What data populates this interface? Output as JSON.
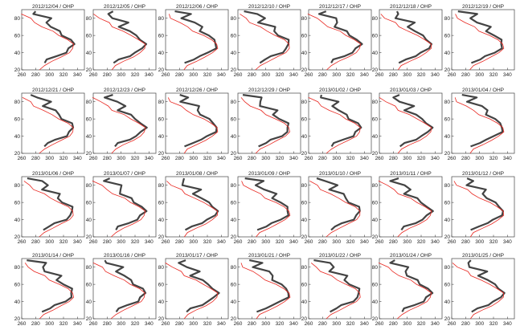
{
  "chart_data": {
    "type": "line",
    "xlim": [
      260,
      350
    ],
    "ylim": [
      20,
      90
    ],
    "x_ticks": [
      "260",
      "280",
      "300",
      "320",
      "340"
    ],
    "y_ticks": [
      "20",
      "40",
      "60",
      "80"
    ],
    "grid": false,
    "colors": {
      "lidar": "#222222",
      "model": "#e8261f",
      "axes": "#444444"
    },
    "panels": [
      {
        "title": "2012/12/04 / OHP"
      },
      {
        "title": "2012/12/05 / OHP"
      },
      {
        "title": "2012/12/06 / OHP"
      },
      {
        "title": "2012/12/10 / OHP"
      },
      {
        "title": "2012/12/17 / OHP"
      },
      {
        "title": "2012/12/18 / OHP"
      },
      {
        "title": "2012/12/19 / OHP"
      },
      {
        "title": "2012/12/21 / OHP"
      },
      {
        "title": "2012/12/23 / OHP"
      },
      {
        "title": "2012/12/26 / OHP"
      },
      {
        "title": "2012/12/29 / OHP"
      },
      {
        "title": "2013/01/02 / OHP"
      },
      {
        "title": "2013/01/03 / OHP"
      },
      {
        "title": "2013/01/04 / OHP"
      },
      {
        "title": "2013/01/06 / OHP"
      },
      {
        "title": "2013/01/07 / OHP"
      },
      {
        "title": "2013/01/08 / OHP"
      },
      {
        "title": "2013/01/09 / OHP"
      },
      {
        "title": "2013/01/10 / OHP"
      },
      {
        "title": "2013/01/11 / OHP"
      },
      {
        "title": "2013/01/12 / OHP"
      },
      {
        "title": "2013/01/14 / OHP"
      },
      {
        "title": "2013/01/16 / OHP"
      },
      {
        "title": "2013/01/17 / OHP"
      },
      {
        "title": "2013/01/21 / OHP"
      },
      {
        "title": "2013/01/22 / OHP"
      },
      {
        "title": "2013/01/24 / OHP"
      },
      {
        "title": "2013/01/25 / OHP"
      }
    ],
    "model_profile": {
      "name": "",
      "y": [
        20,
        25,
        30,
        35,
        40,
        45,
        50,
        55,
        60,
        65,
        70,
        75,
        80,
        85
      ],
      "x": [
        286,
        292,
        304,
        317,
        328,
        334,
        334,
        326,
        314,
        302,
        290,
        280,
        270,
        262
      ]
    },
    "lidar_profile": {
      "name": "",
      "y": [
        28,
        32,
        36,
        40,
        45,
        50,
        55,
        60,
        65,
        70,
        75,
        80,
        85,
        88
      ],
      "x": [
        290,
        298,
        310,
        322,
        330,
        334,
        330,
        320,
        312,
        306,
        300,
        292,
        286,
        278
      ]
    }
  }
}
